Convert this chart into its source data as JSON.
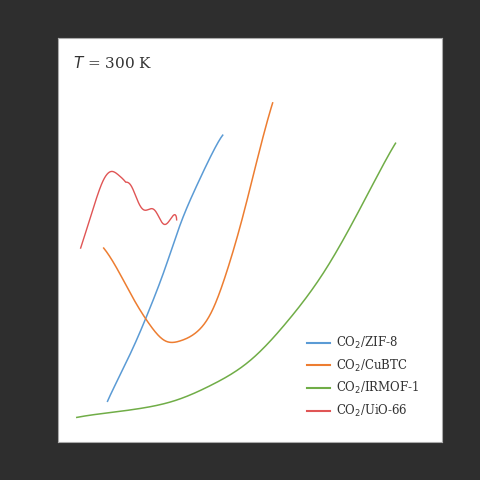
{
  "legend_entries": [
    {
      "label": "CO$_2$/ZIF-8",
      "color": "#5b9bd5"
    },
    {
      "label": "CO$_2$/CuBTC",
      "color": "#ed7d31"
    },
    {
      "label": "CO$_2$/IRMOF-1",
      "color": "#70ad47"
    },
    {
      "label": "CO$_2$/UiO-66",
      "color": "#e05555"
    }
  ],
  "fig_bg": "#2e2e2e",
  "plot_bg": "#ffffff",
  "figsize": [
    4.8,
    4.8
  ],
  "dpi": 100,
  "blue": {
    "x": [
      0.13,
      0.16,
      0.2,
      0.24,
      0.28,
      0.32,
      0.36,
      0.4,
      0.43
    ],
    "y": [
      0.1,
      0.16,
      0.24,
      0.33,
      0.43,
      0.54,
      0.63,
      0.71,
      0.76
    ]
  },
  "orange": {
    "x": [
      0.12,
      0.16,
      0.2,
      0.24,
      0.28,
      0.32,
      0.36,
      0.4,
      0.44,
      0.48,
      0.52,
      0.56
    ],
    "y": [
      0.48,
      0.42,
      0.35,
      0.29,
      0.25,
      0.25,
      0.27,
      0.32,
      0.42,
      0.55,
      0.7,
      0.84
    ]
  },
  "green": {
    "x": [
      0.05,
      0.12,
      0.2,
      0.3,
      0.4,
      0.5,
      0.6,
      0.7,
      0.8,
      0.88
    ],
    "y": [
      0.06,
      0.07,
      0.08,
      0.1,
      0.14,
      0.2,
      0.3,
      0.43,
      0.6,
      0.74
    ]
  },
  "red": {
    "x": [
      0.06,
      0.08,
      0.1,
      0.12,
      0.14,
      0.16,
      0.18,
      0.2,
      0.22,
      0.24,
      0.26,
      0.28,
      0.3,
      0.31
    ],
    "y": [
      0.48,
      0.54,
      0.6,
      0.65,
      0.67,
      0.66,
      0.64,
      0.61,
      0.59,
      0.57,
      0.56,
      0.55,
      0.55,
      0.55
    ]
  }
}
